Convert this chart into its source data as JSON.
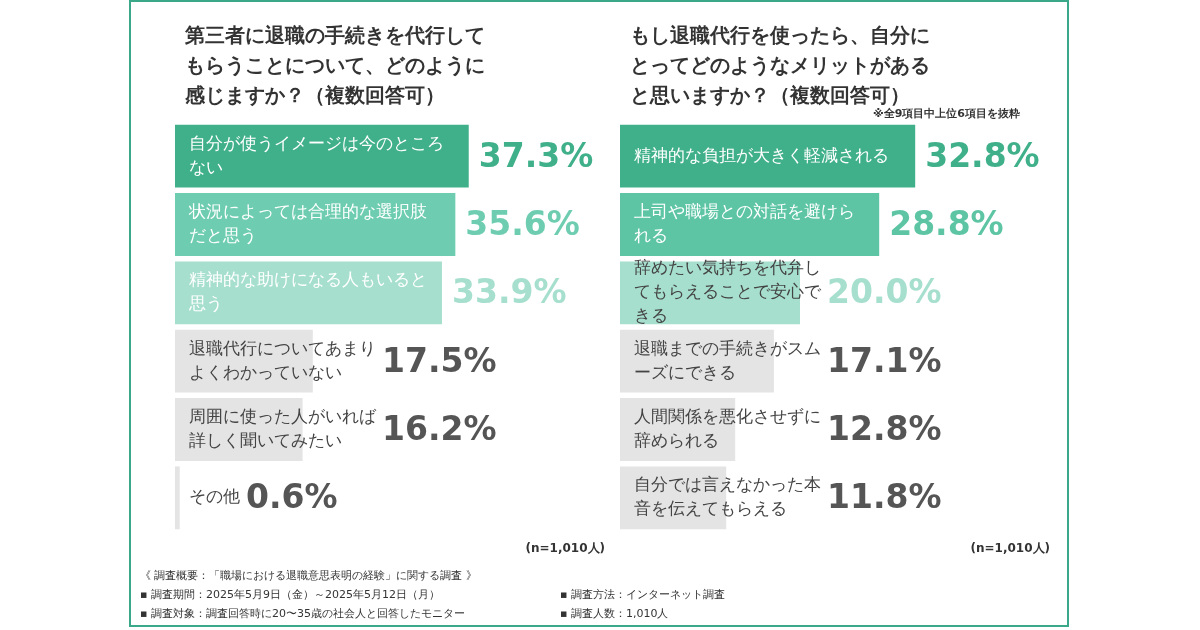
{
  "chart_data": [
    {
      "type": "bar",
      "orientation": "horizontal",
      "title": "第三者に退職の手続きを代行してもらうことについて、どのように感じますか？（複数回答可）",
      "categories": [
        "自分が使うイメージは今のところない",
        "状況によっては合理的な選択肢だと思う",
        "精神的な助けになる人もいると思う",
        "退職代行についてあまりよくわかっていない",
        "周囲に使った人がいれば詳しく聞いてみたい",
        "その他"
      ],
      "values": [
        37.3,
        35.6,
        33.9,
        17.5,
        16.2,
        0.6
      ],
      "value_labels": [
        "37.3%",
        "35.6%",
        "33.9%",
        "17.5%",
        "16.2%",
        "0.6%"
      ],
      "colors": [
        "#40b08b",
        "#6ecdb0",
        "#a6dfcd",
        "#e4e4e4",
        "#e4e4e4",
        "#e4e4e4"
      ],
      "annotations": [
        "(n=1,010人)"
      ],
      "legend": false
    },
    {
      "type": "bar",
      "orientation": "horizontal",
      "title": "もし退職代行を使ったら、自分にとってどのようなメリットがあると思いますか？（複数回答可）",
      "categories": [
        "精神的な負担が大きく軽減される",
        "上司や職場との対話を避けられる",
        "辞めたい気持ちを代弁してもらえることで安心できる",
        "退職までの手続きがスムーズにできる",
        "人間関係を悪化させずに辞められる",
        "自分では言えなかった本音を伝えてもらえる"
      ],
      "values": [
        32.8,
        28.8,
        20.0,
        17.1,
        12.8,
        11.8
      ],
      "value_labels": [
        "32.8%",
        "28.8%",
        "20.0%",
        "17.1%",
        "12.8%",
        "11.8%"
      ],
      "colors": [
        "#40b08b",
        "#5dc5a4",
        "#a6dfcd",
        "#e4e4e4",
        "#e4e4e4",
        "#e4e4e4"
      ],
      "annotations": [
        "※全9項目中上位6項目を抜粋",
        "(n=1,010人)"
      ],
      "legend": false
    },
    {
      "type": "other",
      "title": "《 調査概要：「職場における退職意思表明の経験」に関する調査 》",
      "annotations": [
        "▪ 調査期間：2025年5月9日（金）～2025年5月12日（月）",
        "▪ 調査方法：インターネット調査",
        "▪ 調査対象：調査回答時に20〜35歳の社会人と回答したモニター",
        "▪ 調査人数：1,010人"
      ]
    }
  ]
}
